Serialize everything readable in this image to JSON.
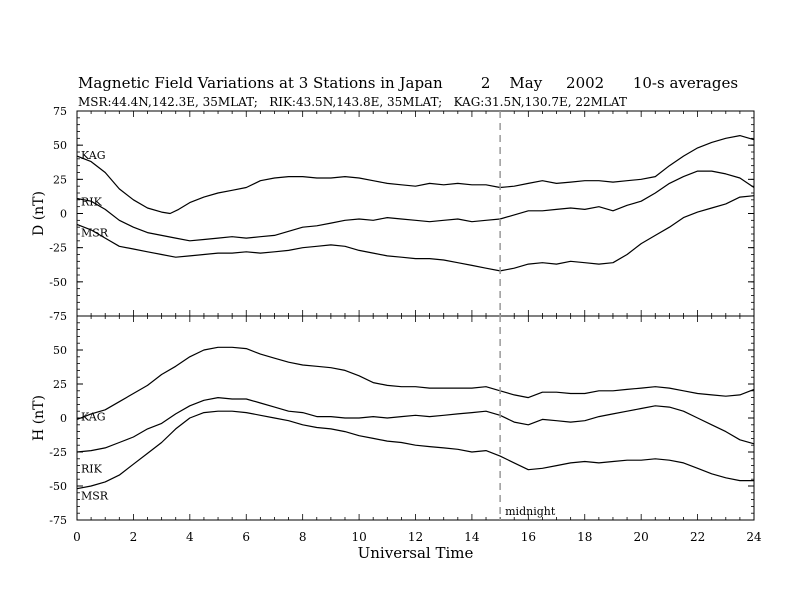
{
  "chart_data": {
    "type": "line",
    "title": "Magnetic Field Variations at 3 Stations in Japan",
    "date_text": "2    May     2002",
    "average_text": "10-s averages",
    "subtitle": "MSR:44.4N,142.3E, 35MLAT;   RIK:43.5N,143.8E, 35MLAT;   KAG:31.5N,130.7E, 22MLAT",
    "xlabel": "Universal Time",
    "xlim": [
      0,
      24
    ],
    "xticks": [
      "0",
      "2",
      "4",
      "6",
      "8",
      "10",
      "12",
      "14",
      "16",
      "18",
      "20",
      "22",
      "24"
    ],
    "midnight_line": {
      "x": 15,
      "label": "midnight"
    },
    "panels": [
      {
        "ylabel": "D (nT)",
        "ylim": [
          -75,
          75
        ],
        "yticks": [
          "75",
          "50",
          "25",
          "0",
          "-25",
          "-50",
          "-75"
        ],
        "series": [
          {
            "name": "KAG",
            "x": [
              0,
              0.5,
              1,
              1.5,
              2,
              2.5,
              3,
              3.3,
              3.6,
              4,
              4.5,
              5,
              5.5,
              6,
              6.5,
              7,
              7.5,
              8,
              8.5,
              9,
              9.5,
              10,
              10.5,
              11,
              11.5,
              12,
              12.5,
              13,
              13.5,
              14,
              14.5,
              15,
              15.5,
              16,
              16.5,
              17,
              17.5,
              18,
              18.5,
              19,
              19.5,
              20,
              20.5,
              21,
              21.5,
              22,
              22.5,
              23,
              23.5,
              24
            ],
            "values": [
              42,
              38,
              30,
              18,
              10,
              4,
              1,
              0,
              3,
              8,
              12,
              15,
              17,
              19,
              24,
              26,
              27,
              27,
              26,
              26,
              27,
              26,
              24,
              22,
              21,
              20,
              22,
              21,
              22,
              21,
              21,
              19,
              20,
              22,
              24,
              22,
              23,
              24,
              24,
              23,
              24,
              25,
              27,
              35,
              42,
              48,
              52,
              55,
              57,
              54
            ]
          },
          {
            "name": "RIK",
            "x": [
              0,
              0.5,
              1,
              1.5,
              2,
              2.5,
              3,
              3.5,
              4,
              4.5,
              5,
              5.5,
              6,
              6.5,
              7,
              7.5,
              8,
              8.5,
              9,
              9.5,
              10,
              10.5,
              11,
              11.5,
              12,
              12.5,
              13,
              13.5,
              14,
              14.5,
              15,
              15.5,
              16,
              16.5,
              17,
              17.5,
              18,
              18.5,
              19,
              19.5,
              20,
              20.5,
              21,
              21.5,
              22,
              22.5,
              23,
              23.5,
              24
            ],
            "values": [
              11,
              9,
              3,
              -5,
              -10,
              -14,
              -16,
              -18,
              -20,
              -19,
              -18,
              -17,
              -18,
              -17,
              -16,
              -13,
              -10,
              -9,
              -7,
              -5,
              -4,
              -5,
              -3,
              -4,
              -5,
              -6,
              -5,
              -4,
              -6,
              -5,
              -4,
              -1,
              2,
              2,
              3,
              4,
              3,
              5,
              2,
              6,
              9,
              15,
              22,
              27,
              31,
              31,
              29,
              26,
              19
            ]
          },
          {
            "name": "MSR",
            "x": [
              0,
              0.5,
              1,
              1.5,
              2,
              2.5,
              3,
              3.5,
              4,
              4.5,
              5,
              5.5,
              6,
              6.5,
              7,
              7.5,
              8,
              8.5,
              9,
              9.5,
              10,
              10.5,
              11,
              11.5,
              12,
              12.5,
              13,
              13.5,
              14,
              14.5,
              15,
              15.5,
              16,
              16.5,
              17,
              17.5,
              18,
              18.5,
              19,
              19.5,
              20,
              20.5,
              21,
              21.5,
              22,
              22.5,
              23,
              23.5,
              24
            ],
            "values": [
              -8,
              -12,
              -18,
              -24,
              -26,
              -28,
              -30,
              -32,
              -31,
              -30,
              -29,
              -29,
              -28,
              -29,
              -28,
              -27,
              -25,
              -24,
              -23,
              -24,
              -27,
              -29,
              -31,
              -32,
              -33,
              -33,
              -34,
              -36,
              -38,
              -40,
              -42,
              -40,
              -37,
              -36,
              -37,
              -35,
              -36,
              -37,
              -36,
              -30,
              -22,
              -16,
              -10,
              -3,
              1,
              4,
              7,
              12,
              13
            ]
          }
        ]
      },
      {
        "ylabel": "H (nT)",
        "ylim": [
          -75,
          75
        ],
        "yticks": [
          "50",
          "25",
          "0",
          "-25",
          "-50",
          "-75"
        ],
        "series": [
          {
            "name": "KAG",
            "x": [
              0,
              0.5,
              1,
              1.5,
              2,
              2.5,
              3,
              3.5,
              4,
              4.5,
              5,
              5.5,
              6,
              6.5,
              7,
              7.5,
              8,
              8.5,
              9,
              9.5,
              10,
              10.5,
              11,
              11.5,
              12,
              12.5,
              13,
              13.5,
              14,
              14.5,
              15,
              15.5,
              16,
              16.5,
              17,
              17.5,
              18,
              18.5,
              19,
              19.5,
              20,
              20.5,
              21,
              21.5,
              22,
              22.5,
              23,
              23.5,
              24
            ],
            "values": [
              -1,
              3,
              6,
              12,
              18,
              24,
              32,
              38,
              45,
              50,
              52,
              52,
              51,
              47,
              44,
              41,
              39,
              38,
              37,
              35,
              31,
              26,
              24,
              23,
              23,
              22,
              22,
              22,
              22,
              23,
              20,
              17,
              15,
              19,
              19,
              18,
              18,
              20,
              20,
              21,
              22,
              23,
              22,
              20,
              18,
              17,
              16,
              17,
              21
            ]
          },
          {
            "name": "RIK",
            "x": [
              0,
              0.5,
              1,
              1.5,
              2,
              2.5,
              3,
              3.5,
              4,
              4.5,
              5,
              5.5,
              6,
              6.5,
              7,
              7.5,
              8,
              8.5,
              9,
              9.5,
              10,
              10.5,
              11,
              11.5,
              12,
              12.5,
              13,
              13.5,
              14,
              14.5,
              15,
              15.5,
              16,
              16.5,
              17,
              17.5,
              18,
              18.5,
              19,
              19.5,
              20,
              20.5,
              21,
              21.5,
              22,
              22.5,
              23,
              23.5,
              24
            ],
            "values": [
              -25,
              -24,
              -22,
              -18,
              -14,
              -8,
              -4,
              3,
              9,
              13,
              15,
              14,
              14,
              11,
              8,
              5,
              4,
              1,
              1,
              0,
              0,
              1,
              0,
              1,
              2,
              1,
              2,
              3,
              4,
              5,
              2,
              -3,
              -5,
              -1,
              -2,
              -3,
              -2,
              1,
              3,
              5,
              7,
              9,
              8,
              5,
              0,
              -5,
              -10,
              -16,
              -19
            ]
          },
          {
            "name": "MSR",
            "x": [
              0,
              0.5,
              1,
              1.5,
              2,
              2.5,
              3,
              3.5,
              4,
              4.5,
              5,
              5.5,
              6,
              6.5,
              7,
              7.5,
              8,
              8.5,
              9,
              9.5,
              10,
              10.5,
              11,
              11.5,
              12,
              12.5,
              13,
              13.5,
              14,
              14.5,
              15,
              15.5,
              16,
              16.5,
              17,
              17.5,
              18,
              18.5,
              19,
              19.5,
              20,
              20.5,
              21,
              21.5,
              22,
              22.5,
              23,
              23.5,
              24
            ],
            "values": [
              -52,
              -50,
              -47,
              -42,
              -34,
              -26,
              -18,
              -8,
              0,
              4,
              5,
              5,
              4,
              2,
              0,
              -2,
              -5,
              -7,
              -8,
              -10,
              -13,
              -15,
              -17,
              -18,
              -20,
              -21,
              -22,
              -23,
              -25,
              -24,
              -28,
              -33,
              -38,
              -37,
              -35,
              -33,
              -32,
              -33,
              -32,
              -31,
              -31,
              -30,
              -31,
              -33,
              -37,
              -41,
              -44,
              -46,
              -46
            ]
          }
        ]
      }
    ]
  }
}
